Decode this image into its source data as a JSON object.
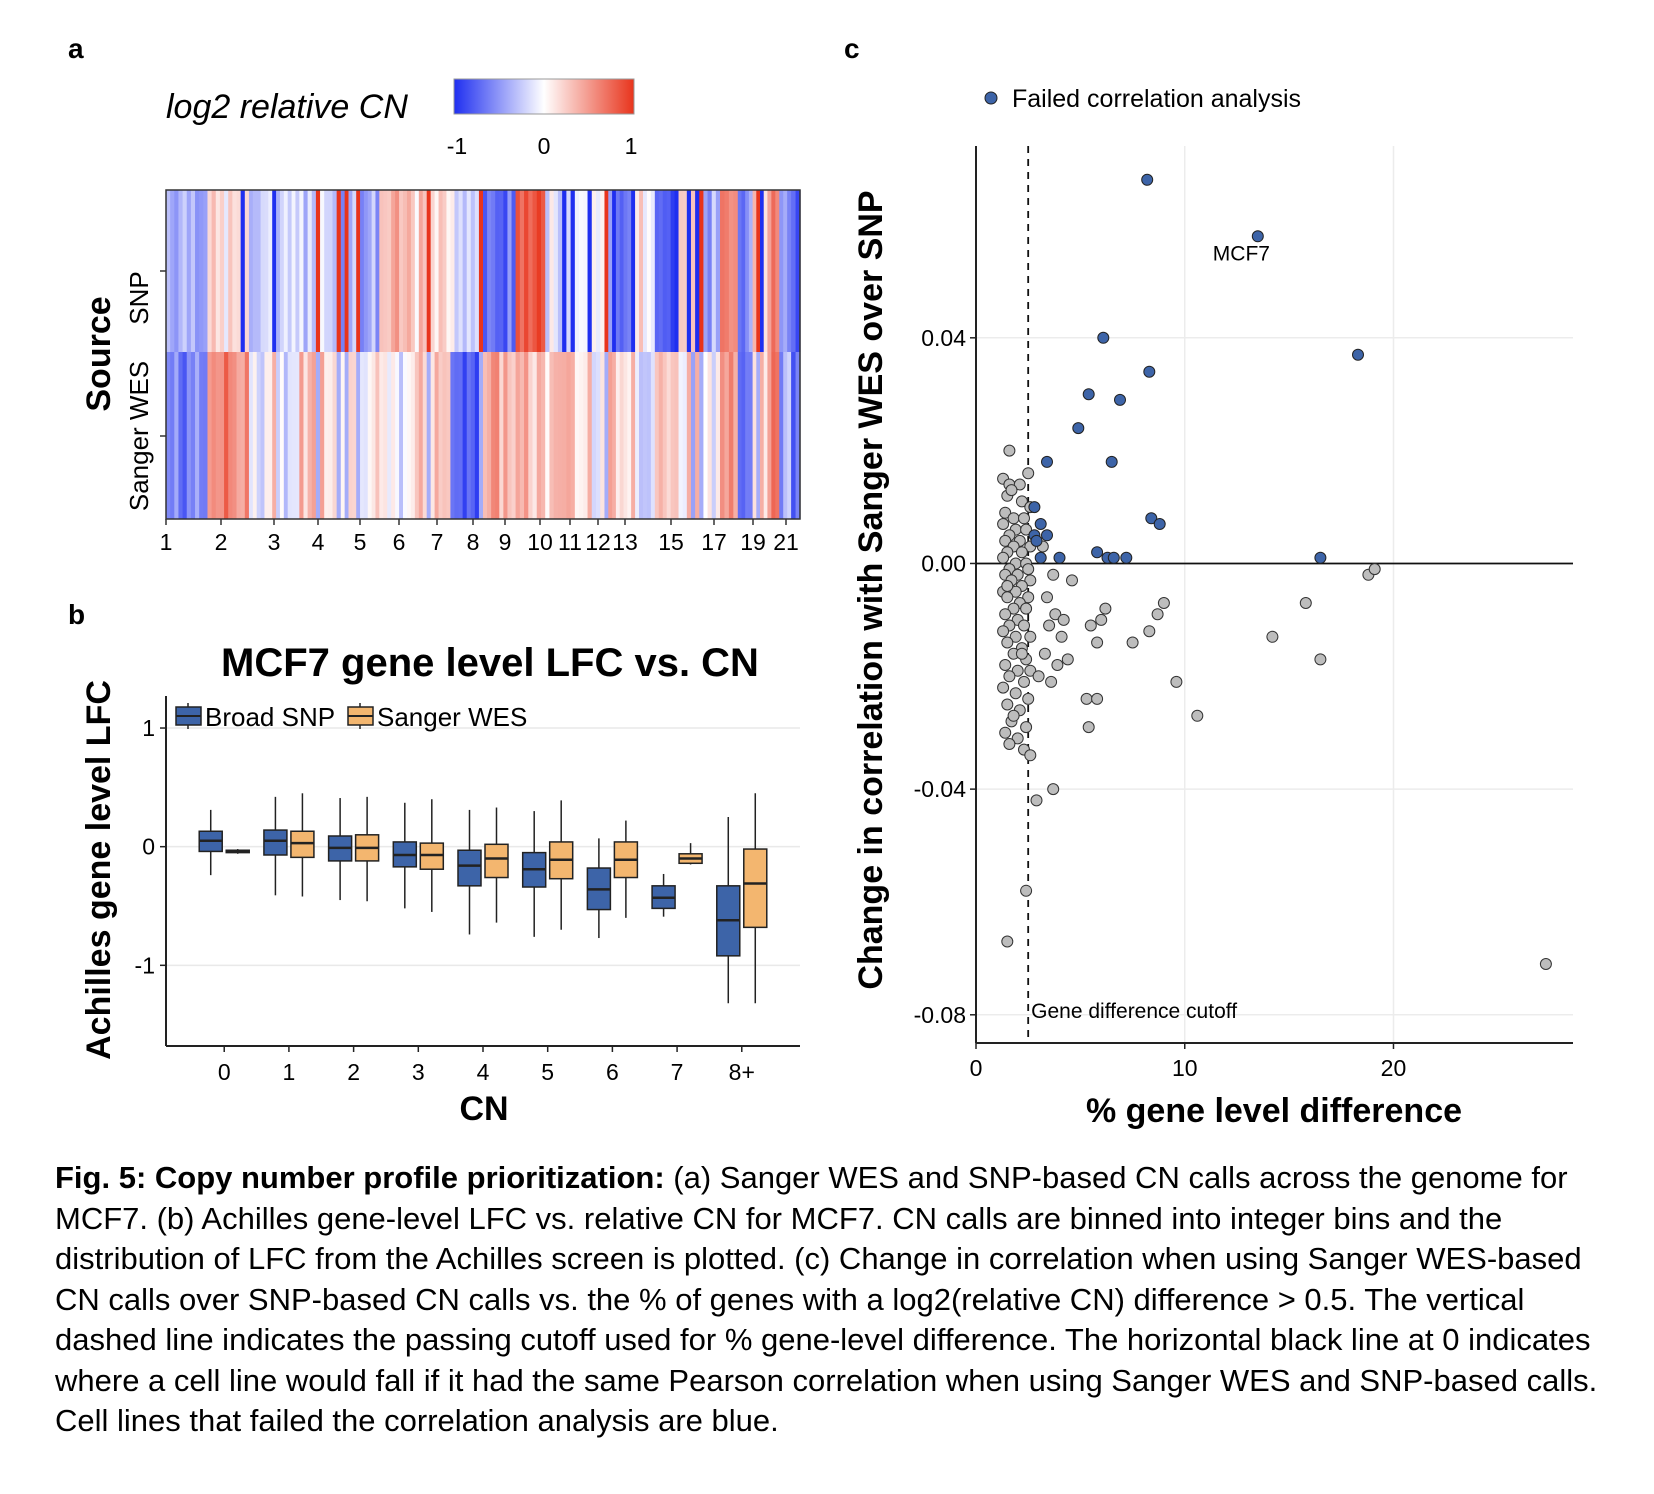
{
  "panels": {
    "a": {
      "letter": "a",
      "legend_title": "log2 relative CN",
      "colorbar": {
        "ticks": [
          "-1",
          "0",
          "1"
        ],
        "low_color": "#1f2ff0",
        "mid_color": "#ffffff",
        "high_color": "#e8341c"
      },
      "y_title": "Source",
      "rows": [
        "SNP",
        "Sanger WES"
      ],
      "x_ticks": [
        "1",
        "2",
        "3",
        "4",
        "5",
        "6",
        "7",
        "8",
        "9",
        "10",
        "11",
        "12",
        "13",
        "15",
        "17",
        "19",
        "21"
      ]
    },
    "b": {
      "letter": "b",
      "title": "MCF7 gene level LFC vs. CN",
      "legend": [
        "Broad SNP",
        "Sanger WES"
      ],
      "x_title": "CN",
      "y_title": "Achilles gene level LFC",
      "colors": {
        "Broad SNP": "#3d64a8",
        "Sanger WES": "#f3b66f"
      }
    },
    "c": {
      "letter": "c",
      "legend": "Failed correlation analysis",
      "x_title": "% gene level difference",
      "y_title": "Change in correlation with Sanger WES over SNP",
      "cutoff_label": "Gene difference cutoff",
      "mcf7_label": "MCF7",
      "colors": {
        "failed": "#3d64a8",
        "passed": "#bdbdbd"
      }
    }
  },
  "chart_data": [
    {
      "type": "heatmap",
      "panel": "a",
      "legend_title": "log2 relative CN",
      "rows": [
        "SNP",
        "Sanger WES"
      ],
      "x_tick_labels": [
        "1",
        "2",
        "3",
        "4",
        "5",
        "6",
        "7",
        "8",
        "9",
        "10",
        "11",
        "12",
        "13",
        "15",
        "17",
        "19",
        "21"
      ],
      "ylabel": "Source",
      "color_range": [
        -1,
        1
      ],
      "segments": [
        {
          "chr": "1",
          "snp": -0.3,
          "wes": -0.6
        },
        {
          "chr": "1",
          "snp": 0.1,
          "wes": 0.6
        },
        {
          "chr": "2",
          "snp": -0.3,
          "wes": -0.1
        },
        {
          "chr": "3",
          "snp": -0.2,
          "wes": 0.3
        },
        {
          "chr": "4",
          "snp": -0.4,
          "wes": 0.1
        },
        {
          "chr": "5",
          "snp": 0.3,
          "wes": -0.1
        },
        {
          "chr": "6",
          "snp": 0.2,
          "wes": 0.35
        },
        {
          "chr": "7",
          "snp": -0.1,
          "wes": -0.7
        },
        {
          "chr": "8",
          "snp": -0.7,
          "wes": 0.4
        },
        {
          "chr": "9",
          "snp": 0.8,
          "wes": 0.3
        },
        {
          "chr": "10",
          "snp": -0.1,
          "wes": 0.2
        },
        {
          "chr": "11",
          "snp": 0.1,
          "wes": 0.05
        },
        {
          "chr": "12",
          "snp": -0.7,
          "wes": 0.3
        },
        {
          "chr": "13",
          "snp": 0.1,
          "wes": -0.1
        },
        {
          "chr": "14",
          "snp": -0.9,
          "wes": 0.3
        },
        {
          "chr": "15",
          "snp": 0.4,
          "wes": -0.2
        },
        {
          "chr": "16",
          "snp": -0.4,
          "wes": -0.1
        },
        {
          "chr": "17",
          "snp": 0.5,
          "wes": 0.6
        },
        {
          "chr": "18",
          "snp": -0.6,
          "wes": -0.5
        },
        {
          "chr": "19",
          "snp": 0.3,
          "wes": 0.2
        },
        {
          "chr": "20",
          "snp": 0.7,
          "wes": 0.7
        },
        {
          "chr": "21",
          "snp": -0.5,
          "wes": -0.4
        },
        {
          "chr": "22",
          "snp": -0.8,
          "wes": -0.6
        }
      ]
    },
    {
      "type": "box",
      "panel": "b",
      "title": "MCF7 gene level LFC vs. CN",
      "xlabel": "CN",
      "ylabel": "Achilles gene level LFC",
      "categories": [
        "0",
        "1",
        "2",
        "3",
        "4",
        "5",
        "6",
        "7",
        "8+"
      ],
      "y_ticks": [
        1,
        0,
        -1
      ],
      "ylim": [
        -1.68,
        1.27
      ],
      "series": [
        {
          "name": "Broad SNP",
          "boxes": [
            [
              -0.24,
              -0.04,
              0.05,
              0.13,
              0.31
            ],
            [
              -0.41,
              -0.07,
              0.05,
              0.14,
              0.42
            ],
            [
              -0.45,
              -0.12,
              -0.01,
              0.09,
              0.41
            ],
            [
              -0.52,
              -0.17,
              -0.07,
              0.04,
              0.37
            ],
            [
              -0.74,
              -0.33,
              -0.16,
              -0.03,
              0.31
            ],
            [
              -0.76,
              -0.34,
              -0.19,
              -0.05,
              0.3
            ],
            [
              -0.77,
              -0.53,
              -0.36,
              -0.18,
              0.07
            ],
            [
              -0.59,
              -0.52,
              -0.43,
              -0.33,
              -0.23
            ],
            [
              -1.32,
              -0.92,
              -0.62,
              -0.33,
              0.25
            ]
          ]
        },
        {
          "name": "Sanger WES",
          "boxes": [
            [
              -0.06,
              -0.05,
              -0.04,
              -0.03,
              -0.02
            ],
            [
              -0.42,
              -0.09,
              0.03,
              0.13,
              0.45
            ],
            [
              -0.46,
              -0.12,
              -0.01,
              0.1,
              0.42
            ],
            [
              -0.55,
              -0.19,
              -0.07,
              0.03,
              0.4
            ],
            [
              -0.64,
              -0.26,
              -0.1,
              0.02,
              0.33
            ],
            [
              -0.7,
              -0.27,
              -0.11,
              0.04,
              0.39
            ],
            [
              -0.6,
              -0.26,
              -0.11,
              0.04,
              0.22
            ],
            [
              -0.15,
              -0.14,
              -0.1,
              -0.06,
              0.03
            ],
            [
              -1.32,
              -0.68,
              -0.31,
              -0.02,
              0.45
            ]
          ]
        }
      ]
    },
    {
      "type": "scatter",
      "panel": "c",
      "xlabel": "% gene level difference",
      "ylabel": "Change in correlation with Sanger WES over SNP",
      "xlim": [
        0,
        28.6
      ],
      "ylim": [
        -0.085,
        0.074
      ],
      "x_ticks": [
        0,
        10,
        20
      ],
      "y_ticks": [
        0.04,
        0.0,
        -0.04,
        -0.08
      ],
      "cutoff_x": 2.5,
      "hline_y": 0,
      "legend": "Failed correlation analysis",
      "annotation": {
        "label": "MCF7",
        "x": 13.5,
        "y": 0.058
      },
      "failed_points": [
        [
          8.2,
          0.068
        ],
        [
          13.5,
          0.058
        ],
        [
          6.1,
          0.04
        ],
        [
          18.3,
          0.037
        ],
        [
          8.3,
          0.034
        ],
        [
          5.4,
          0.03
        ],
        [
          6.9,
          0.029
        ],
        [
          4.9,
          0.024
        ],
        [
          3.4,
          0.018
        ],
        [
          6.5,
          0.018
        ],
        [
          2.8,
          0.01
        ],
        [
          8.4,
          0.008
        ],
        [
          8.8,
          0.007
        ],
        [
          3.1,
          0.007
        ],
        [
          2.8,
          0.005
        ],
        [
          3.4,
          0.005
        ],
        [
          2.9,
          0.004
        ],
        [
          5.8,
          0.002
        ],
        [
          6.3,
          0.001
        ],
        [
          6.6,
          0.001
        ],
        [
          7.2,
          0.001
        ],
        [
          4.0,
          0.001
        ],
        [
          3.1,
          0.001
        ],
        [
          16.5,
          0.001
        ]
      ],
      "passed_points": [
        [
          1.6,
          0.02
        ],
        [
          2.5,
          0.016
        ],
        [
          1.3,
          0.015
        ],
        [
          1.6,
          0.014
        ],
        [
          2.1,
          0.014
        ],
        [
          1.5,
          0.012
        ],
        [
          2.2,
          0.011
        ],
        [
          2.6,
          0.01
        ],
        [
          1.4,
          0.009
        ],
        [
          1.8,
          0.008
        ],
        [
          2.3,
          0.008
        ],
        [
          1.3,
          0.007
        ],
        [
          1.9,
          0.006
        ],
        [
          2.4,
          0.006
        ],
        [
          1.6,
          0.005
        ],
        [
          2.1,
          0.004
        ],
        [
          1.4,
          0.004
        ],
        [
          1.8,
          0.003
        ],
        [
          2.6,
          0.003
        ],
        [
          1.5,
          0.002
        ],
        [
          2.2,
          0.002
        ],
        [
          1.3,
          0.001
        ],
        [
          1.9,
          0.0
        ],
        [
          2.4,
          0.0
        ],
        [
          1.6,
          -0.001
        ],
        [
          2.0,
          -0.002
        ],
        [
          1.4,
          -0.002
        ],
        [
          2.6,
          -0.003
        ],
        [
          1.7,
          -0.003
        ],
        [
          2.2,
          -0.004
        ],
        [
          1.3,
          -0.005
        ],
        [
          1.9,
          -0.005
        ],
        [
          2.5,
          -0.006
        ],
        [
          1.5,
          -0.006
        ],
        [
          2.1,
          -0.007
        ],
        [
          1.8,
          -0.008
        ],
        [
          2.4,
          -0.008
        ],
        [
          1.4,
          -0.009
        ],
        [
          2.0,
          -0.01
        ],
        [
          1.6,
          -0.011
        ],
        [
          2.3,
          -0.011
        ],
        [
          1.3,
          -0.012
        ],
        [
          1.9,
          -0.013
        ],
        [
          2.6,
          -0.013
        ],
        [
          1.5,
          -0.014
        ],
        [
          2.2,
          -0.015
        ],
        [
          1.8,
          -0.016
        ],
        [
          2.4,
          -0.017
        ],
        [
          1.4,
          -0.018
        ],
        [
          2.0,
          -0.019
        ],
        [
          1.6,
          -0.02
        ],
        [
          2.3,
          -0.021
        ],
        [
          1.3,
          -0.022
        ],
        [
          1.9,
          -0.023
        ],
        [
          2.5,
          -0.024
        ],
        [
          1.5,
          -0.025
        ],
        [
          2.1,
          -0.026
        ],
        [
          1.7,
          -0.028
        ],
        [
          2.4,
          -0.029
        ],
        [
          1.4,
          -0.03
        ],
        [
          2.0,
          -0.031
        ],
        [
          1.6,
          -0.032
        ],
        [
          2.3,
          -0.033
        ],
        [
          2.6,
          -0.034
        ],
        [
          1.8,
          -0.027
        ],
        [
          2.2,
          -0.016
        ],
        [
          1.5,
          -0.004
        ],
        [
          2.6,
          -0.019
        ],
        [
          1.7,
          0.013
        ],
        [
          2.5,
          -0.001
        ],
        [
          3.2,
          0.003
        ],
        [
          3.7,
          -0.002
        ],
        [
          4.6,
          -0.003
        ],
        [
          3.4,
          -0.006
        ],
        [
          3.8,
          -0.009
        ],
        [
          3.5,
          -0.011
        ],
        [
          4.1,
          -0.013
        ],
        [
          3.3,
          -0.016
        ],
        [
          3.9,
          -0.018
        ],
        [
          4.4,
          -0.017
        ],
        [
          3.0,
          -0.02
        ],
        [
          3.6,
          -0.021
        ],
        [
          5.5,
          -0.011
        ],
        [
          6.0,
          -0.01
        ],
        [
          5.8,
          -0.014
        ],
        [
          4.2,
          -0.01
        ],
        [
          6.2,
          -0.008
        ],
        [
          5.3,
          -0.024
        ],
        [
          5.8,
          -0.024
        ],
        [
          5.4,
          -0.029
        ],
        [
          7.5,
          -0.014
        ],
        [
          8.3,
          -0.012
        ],
        [
          8.7,
          -0.009
        ],
        [
          9.0,
          -0.007
        ],
        [
          9.6,
          -0.021
        ],
        [
          10.6,
          -0.027
        ],
        [
          14.2,
          -0.013
        ],
        [
          15.8,
          -0.007
        ],
        [
          16.5,
          -0.017
        ],
        [
          18.8,
          -0.002
        ],
        [
          19.1,
          -0.001
        ],
        [
          3.7,
          -0.04
        ],
        [
          2.9,
          -0.042
        ],
        [
          2.4,
          -0.058
        ],
        [
          1.5,
          -0.067
        ],
        [
          27.3,
          -0.071
        ]
      ]
    }
  ],
  "caption": {
    "label": "Fig. 5: Copy number profile prioritization:",
    "text": " (a) Sanger WES and SNP-based CN calls across the genome for MCF7. (b) Achilles gene-level LFC vs. relative CN for MCF7. CN calls are binned into integer bins and the distribution of LFC from the Achilles screen is plotted. (c) Change in correlation when using Sanger WES-based CN calls over SNP-based CN calls vs. the % of genes with a log2(relative CN) difference > 0.5. The vertical dashed line indicates the passing cutoff used for % gene-level difference. The horizontal black line at 0 indicates where a cell line would fall if it had the same Pearson correlation when using Sanger WES and SNP-based calls. Cell lines that failed the correlation analysis are blue."
  }
}
